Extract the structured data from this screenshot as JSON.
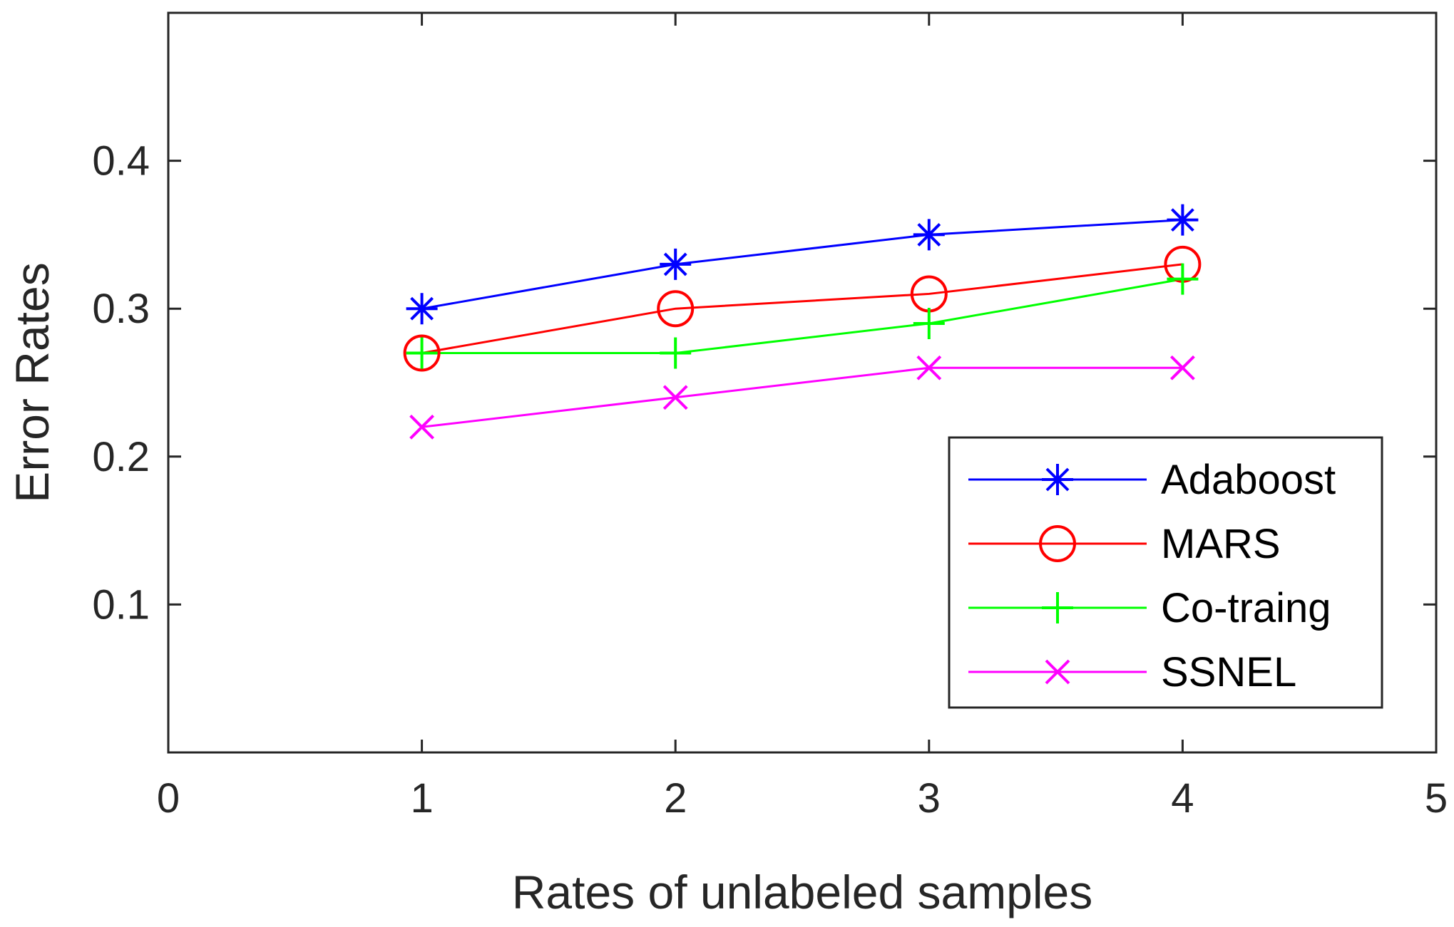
{
  "chart_data": {
    "type": "line",
    "title": "",
    "xlabel": "Rates of unlabeled samples",
    "ylabel": "Error Rates",
    "xlim": [
      0,
      5
    ],
    "ylim": [
      0,
      0.5
    ],
    "x_ticks": [
      0,
      1,
      2,
      3,
      4,
      5
    ],
    "x_tick_labels": [
      "0",
      "1",
      "2",
      "3",
      "4",
      "5"
    ],
    "y_ticks": [
      0.1,
      0.2,
      0.3,
      0.4
    ],
    "y_tick_labels": [
      "0.1",
      "0.2",
      "0.3",
      "0.4"
    ],
    "grid": false,
    "legend_position": "bottom-right",
    "x": [
      1,
      2,
      3,
      4
    ],
    "series": [
      {
        "name": "Adaboost",
        "values": [
          0.3,
          0.33,
          0.35,
          0.36
        ],
        "color": "#0000ff",
        "marker": "asterisk"
      },
      {
        "name": "MARS",
        "values": [
          0.27,
          0.3,
          0.31,
          0.33
        ],
        "color": "#ff0000",
        "marker": "circle"
      },
      {
        "name": "Co-traing",
        "values": [
          0.27,
          0.27,
          0.29,
          0.32
        ],
        "color": "#00ff00",
        "marker": "plus"
      },
      {
        "name": "SSNEL",
        "values": [
          0.22,
          0.24,
          0.26,
          0.26
        ],
        "color": "#ff00ff",
        "marker": "cross"
      }
    ]
  }
}
